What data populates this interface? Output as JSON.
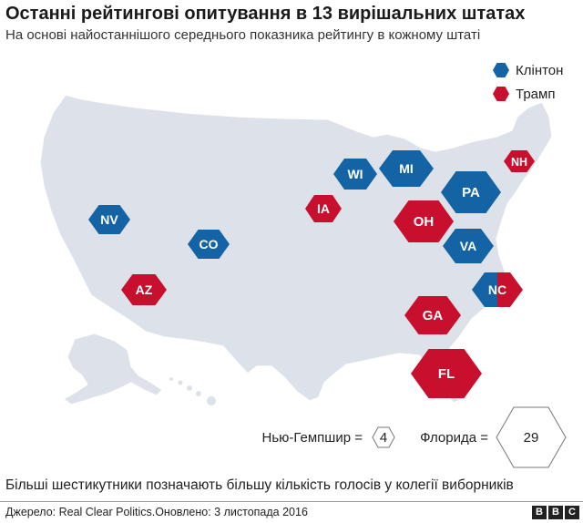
{
  "title": "Останні рейтингові опитування в 13 вирішальних штатах",
  "subtitle": "На основі найостаннішого середнього показника рейтингу в кожному штаті",
  "legend": {
    "clinton": {
      "label": "Клінтон",
      "color": "#1464a5"
    },
    "trump": {
      "label": "Трамп",
      "color": "#c8102e"
    }
  },
  "states": [
    {
      "code": "NV",
      "leader": "clinton"
    },
    {
      "code": "CO",
      "leader": "clinton"
    },
    {
      "code": "AZ",
      "leader": "trump"
    },
    {
      "code": "IA",
      "leader": "trump"
    },
    {
      "code": "WI",
      "leader": "clinton"
    },
    {
      "code": "MI",
      "leader": "clinton"
    },
    {
      "code": "OH",
      "leader": "trump"
    },
    {
      "code": "PA",
      "leader": "clinton"
    },
    {
      "code": "VA",
      "leader": "clinton"
    },
    {
      "code": "NC",
      "leader": "tie"
    },
    {
      "code": "GA",
      "leader": "trump"
    },
    {
      "code": "FL",
      "leader": "trump"
    },
    {
      "code": "NH",
      "leader": "trump"
    }
  ],
  "scale": {
    "nh_label": "Нью-Гемпшир =",
    "nh_value": "4",
    "fl_label": "Флорида =",
    "fl_value": "29"
  },
  "footnote": "Більші шестикутники позначають більшу кількість голосів у колегії виборників",
  "source": "Джерело: Real Clear Politics.Оновлено: 3 листопада 2016",
  "brand": [
    "B",
    "B",
    "C"
  ]
}
